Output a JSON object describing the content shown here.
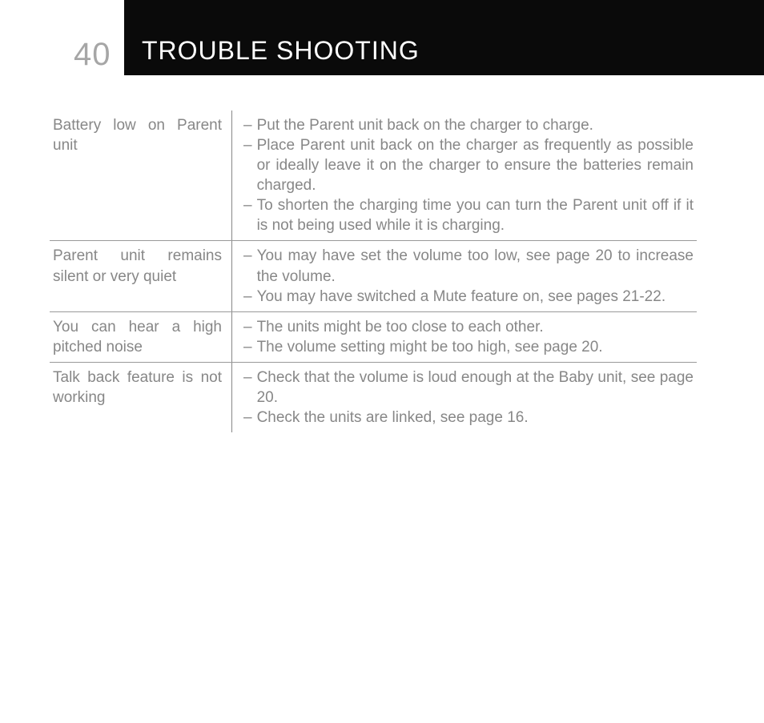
{
  "header": {
    "page_number": "40",
    "title": "TROUBLE SHOOTING"
  },
  "colors": {
    "header_bg": "#0a0a0a",
    "header_text": "#ffffff",
    "page_number": "#a6a6a6",
    "body_text": "#878787",
    "border": "#9a9a9a"
  },
  "table": {
    "rows": [
      {
        "problem": "Battery low on Parent unit",
        "solutions": [
          "Put the Parent unit back on the charger to charge.",
          "Place Parent unit back on the charger as frequently as possible or ideally leave it on the charger to ensure the batteries remain charged.",
          "To shorten the charging time you can turn the Parent unit off if it is not being used while it is charging."
        ]
      },
      {
        "problem": "Parent unit remains silent or very quiet",
        "solutions": [
          "You may have set the volume too low, see page 20 to increase the volume.",
          "You may have switched a Mute feature on, see pages 21-22."
        ]
      },
      {
        "problem": "You can hear a high pitched noise",
        "solutions": [
          "The units might be too close to each other.",
          "The volume setting might be too high, see page 20."
        ]
      },
      {
        "problem": "Talk back feature is not working",
        "solutions": [
          "Check that the volume is loud enough at the Baby unit, see page 20.",
          "Check the units are linked, see page 16."
        ]
      }
    ]
  },
  "font_sizes": {
    "page_number": 40,
    "title": 32,
    "body": 19
  }
}
